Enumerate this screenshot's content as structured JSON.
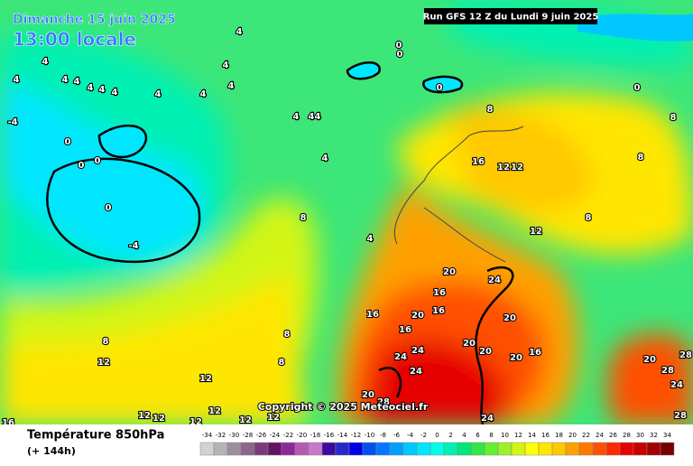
{
  "header": {
    "date": "Dimanche 15 juin 2025",
    "time": "13:00 locale",
    "run": "Run GFS 12 Z du Lundi 9 juin 2025"
  },
  "footer": {
    "title": "Température 850hPa",
    "subtitle": "(+ 144h)",
    "copyright": "Copyright © 2025 Meteociel.fr"
  },
  "legend": {
    "ticks": [
      -34,
      -32,
      -30,
      -28,
      -26,
      -24,
      -22,
      -20,
      -18,
      -16,
      -14,
      -12,
      -10,
      -8,
      -6,
      -4,
      -2,
      0,
      2,
      4,
      6,
      8,
      10,
      12,
      14,
      16,
      18,
      20,
      22,
      24,
      26,
      28,
      30,
      32,
      34
    ],
    "colors": [
      "#d2d2d2",
      "#b4b4b4",
      "#a08ca0",
      "#8c648c",
      "#783c78",
      "#641464",
      "#8c2896",
      "#b45ab4",
      "#c878c8",
      "#3c0aa0",
      "#2828c8",
      "#0000e6",
      "#0050f0",
      "#0078ff",
      "#00a0ff",
      "#00c8ff",
      "#00e6ff",
      "#00ffe6",
      "#00f0b4",
      "#00e678",
      "#32e646",
      "#64f032",
      "#a0f028",
      "#d2f514",
      "#ffff00",
      "#ffe600",
      "#ffc800",
      "#ffa000",
      "#ff7800",
      "#ff5000",
      "#ff2800",
      "#e60000",
      "#c80000",
      "#a00000",
      "#780000"
    ]
  },
  "contour_labels": [
    4,
    4,
    4,
    4,
    4,
    4,
    4,
    4,
    4,
    4,
    4,
    4,
    -4,
    0,
    0,
    0,
    0,
    -4,
    0,
    0,
    0,
    0,
    4,
    4,
    4,
    4,
    4,
    8,
    8,
    8,
    8,
    8,
    16,
    12,
    12,
    12,
    20,
    24,
    16,
    16,
    20,
    16,
    16,
    24,
    24,
    24,
    20,
    20,
    20,
    20,
    16,
    20,
    28,
    24,
    28,
    28,
    20,
    24,
    28,
    12,
    12,
    12,
    12,
    12,
    12,
    12,
    12,
    16,
    8,
    8,
    8
  ]
}
